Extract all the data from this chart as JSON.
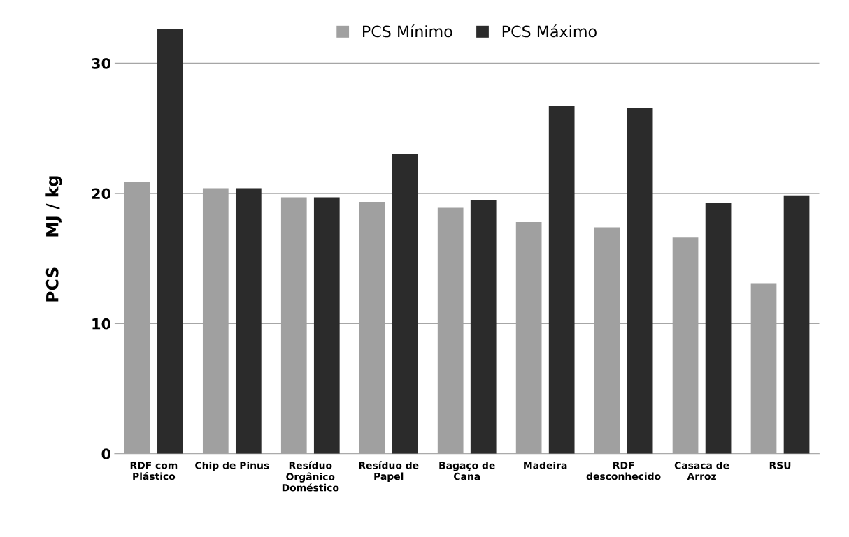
{
  "chart_data": {
    "type": "bar",
    "ylabel": "PCS     MJ / kg",
    "categories": [
      "RDF com\nPlástico",
      "Chip de Pinus",
      "Resíduo\nOrgânico\nDoméstico",
      "Resíduo de\nPapel",
      "Bagaço de\nCana",
      "Madeira",
      "RDF\ndesconhecido",
      "Casaca de\nArroz",
      "RSU"
    ],
    "series": [
      {
        "name": "PCS Mínimo",
        "color": "#a0a0a0",
        "values": [
          20.9,
          20.4,
          19.7,
          19.35,
          18.9,
          17.8,
          17.4,
          16.6,
          13.1
        ]
      },
      {
        "name": "PCS Máximo",
        "color": "#2b2b2b",
        "values": [
          32.6,
          20.4,
          19.7,
          23.0,
          19.5,
          26.7,
          26.6,
          19.3,
          19.85
        ]
      }
    ],
    "ylim": [
      0,
      33
    ],
    "yticks": [
      0,
      10,
      20,
      30
    ],
    "grid": "y",
    "legend": "top"
  }
}
